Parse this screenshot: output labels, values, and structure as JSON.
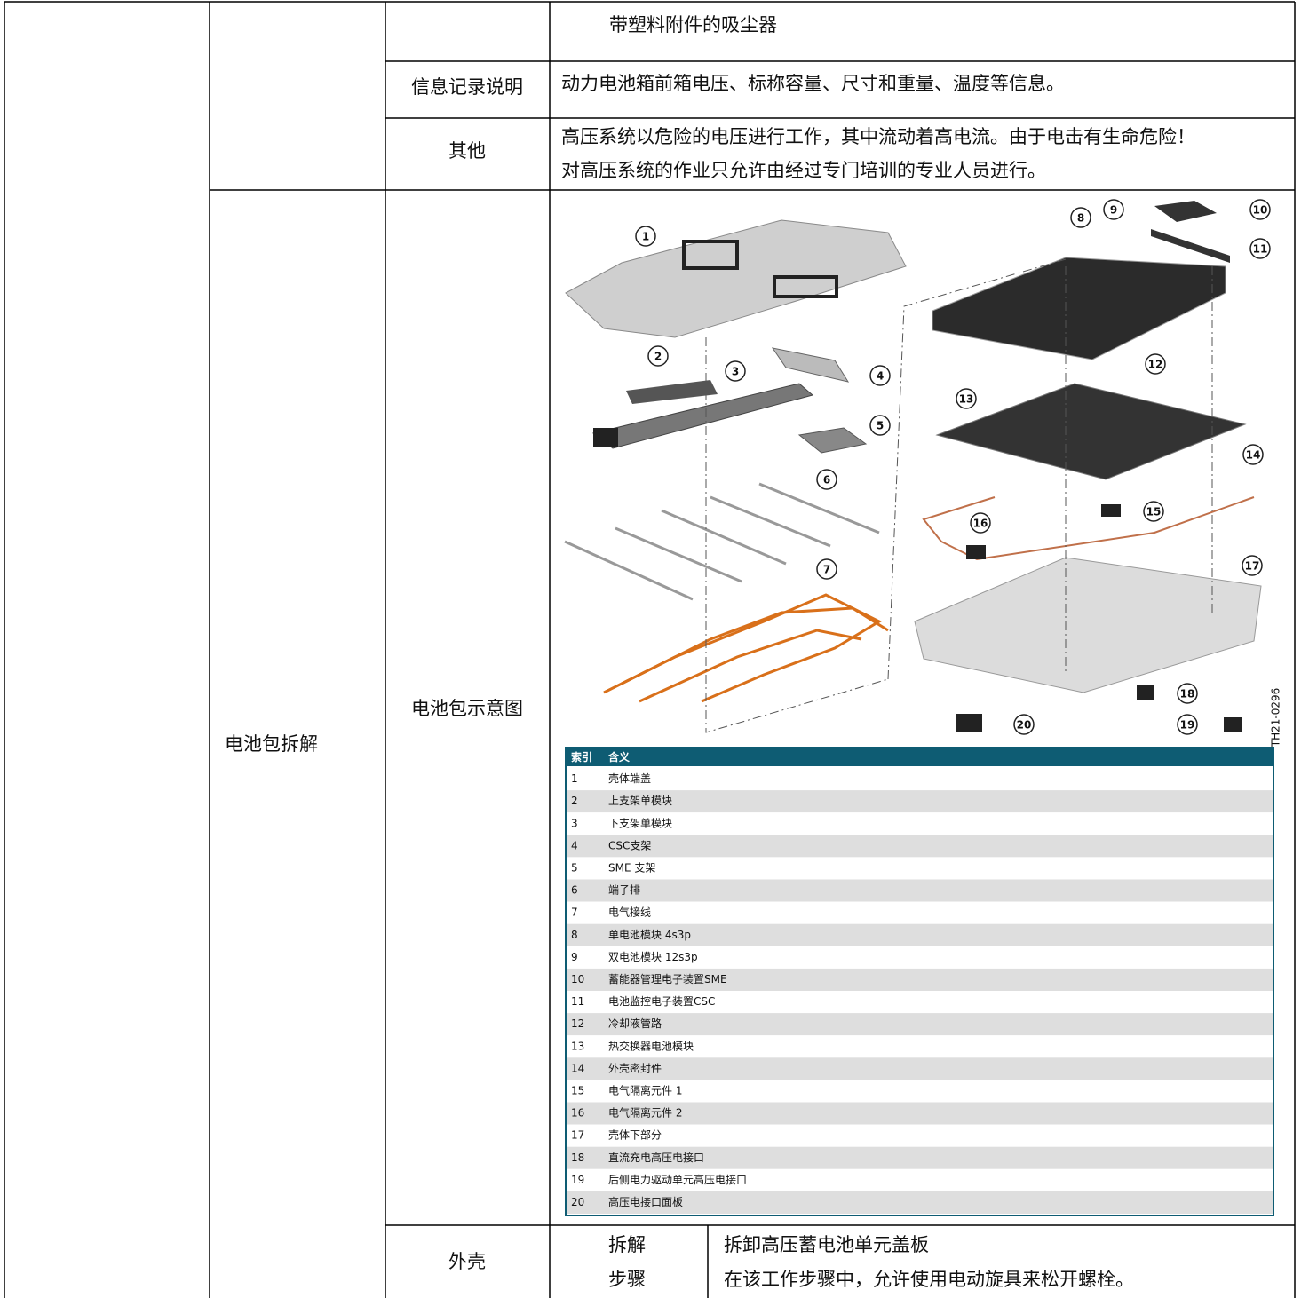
{
  "intro_text": "带塑料附件的吸尘器",
  "info": {
    "label": "信息记录说明",
    "text": "动力电池箱前箱电压、标称容量、尺寸和重量、温度等信息。"
  },
  "other": {
    "label": "其他",
    "lines": [
      "高压系统以危险的电压进行工作，其中流动着高电流。由于电击有生命危险！",
      "对高压系统的作业只允许由经过专门培训的专业人员进行。"
    ]
  },
  "section": {
    "label": "电池包拆解",
    "diagram": {
      "label": "电池包示意图",
      "callouts": [
        1,
        2,
        3,
        4,
        5,
        6,
        7,
        8,
        9,
        10,
        11,
        12,
        13,
        14,
        15,
        16,
        17,
        18,
        19,
        20
      ],
      "code": "TH21-0296",
      "legend": {
        "header": [
          "索引",
          "含义"
        ],
        "rows": [
          [
            1,
            "壳体端盖"
          ],
          [
            2,
            "上支架单模块"
          ],
          [
            3,
            "下支架单模块"
          ],
          [
            4,
            "CSC支架"
          ],
          [
            5,
            "SME 支架"
          ],
          [
            6,
            "端子排"
          ],
          [
            7,
            "电气接线"
          ],
          [
            8,
            "单电池模块 4s3p"
          ],
          [
            9,
            "双电池模块 12s3p"
          ],
          [
            10,
            "蓄能器管理电子装置SME"
          ],
          [
            11,
            "电池监控电子装置CSC"
          ],
          [
            12,
            "冷却液管路"
          ],
          [
            13,
            "热交换器电池模块"
          ],
          [
            14,
            "外壳密封件"
          ],
          [
            15,
            "电气隔离元件 1"
          ],
          [
            16,
            "电气隔离元件 2"
          ],
          [
            17,
            "壳体下部分"
          ],
          [
            18,
            "直流充电高压电接口"
          ],
          [
            19,
            "后侧电力驱动单元高压电接口"
          ],
          [
            20,
            "高压电接口面板"
          ]
        ]
      }
    },
    "housing": {
      "label": "外壳",
      "step_label": [
        "拆解",
        "步骤"
      ],
      "steps": [
        "拆卸高压蓄电池单元盖板",
        "在该工作步骤中，允许使用电动旋具来松开螺栓。"
      ]
    }
  }
}
